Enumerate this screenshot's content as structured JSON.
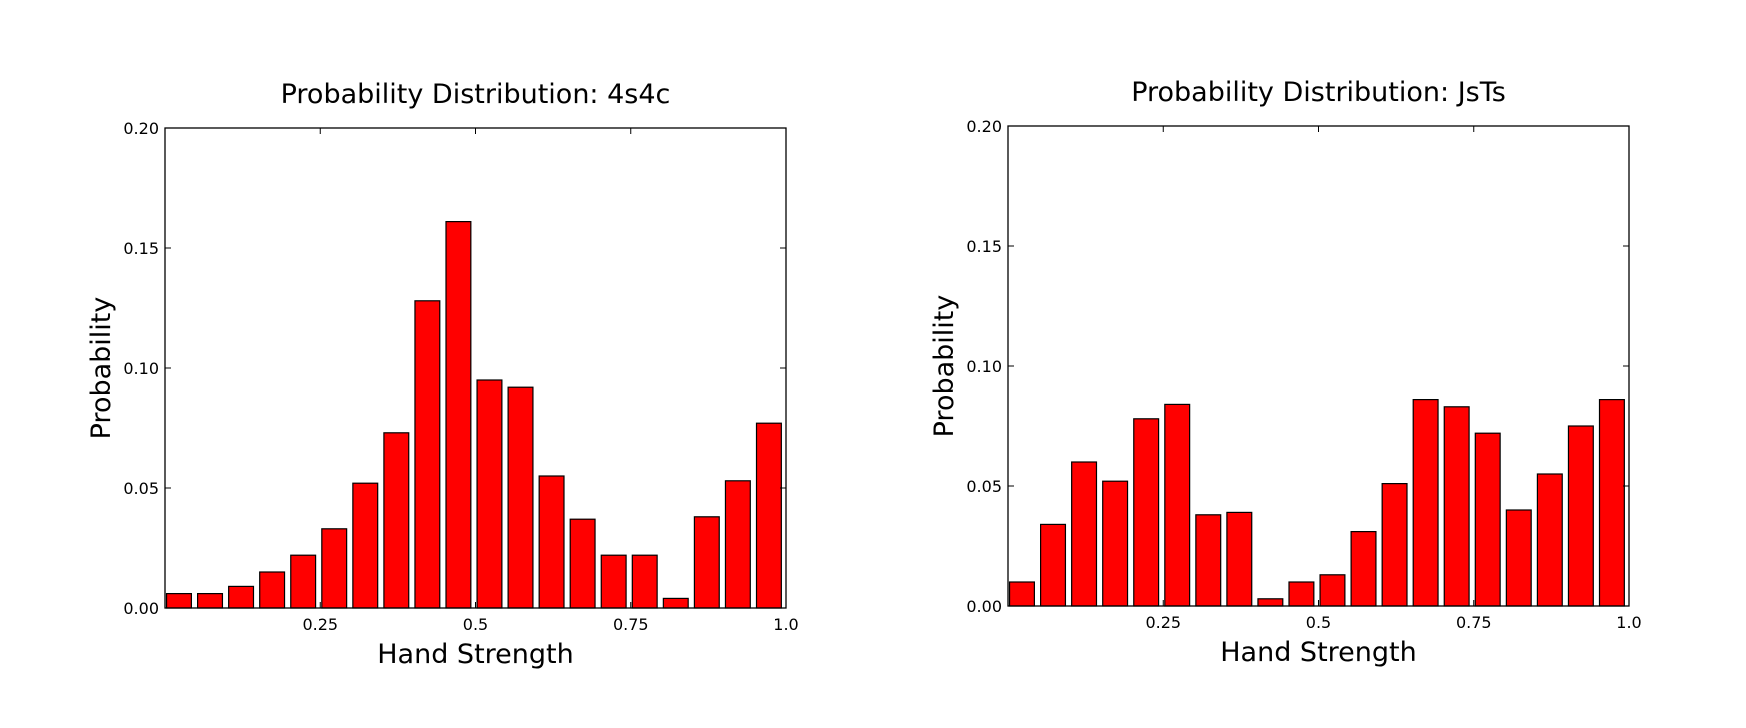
{
  "chart_data": [
    {
      "type": "bar",
      "title": "Probability Distribution: 4s4c",
      "xlabel": "Hand Strength",
      "ylabel": "Probability",
      "xlim": [
        0,
        1.0
      ],
      "ylim": [
        0,
        0.2
      ],
      "xticks": [
        0.25,
        0.5,
        0.75,
        1.0
      ],
      "xtick_labels": [
        "0.25",
        "0.5",
        "0.75",
        "1.0"
      ],
      "yticks": [
        0,
        0.05,
        0.1,
        0.15,
        0.2
      ],
      "ytick_labels": [
        "0.00",
        "0.05",
        "0.10",
        "0.15",
        "0.20"
      ],
      "bar_color": "#ff0000",
      "bar_width": 0.04,
      "x": [
        0.0225,
        0.0725,
        0.1225,
        0.1725,
        0.2225,
        0.2725,
        0.3225,
        0.3725,
        0.4225,
        0.4725,
        0.5225,
        0.5725,
        0.6225,
        0.6725,
        0.7225,
        0.7725,
        0.8225,
        0.8725,
        0.9225,
        0.9725
      ],
      "values": [
        0.006,
        0.006,
        0.009,
        0.015,
        0.022,
        0.033,
        0.052,
        0.073,
        0.128,
        0.161,
        0.095,
        0.092,
        0.055,
        0.037,
        0.022,
        0.022,
        0.004,
        0.038,
        0.053,
        0.077
      ]
    },
    {
      "type": "bar",
      "title": "Probability Distribution: JsTs",
      "xlabel": "Hand Strength",
      "ylabel": "Probability",
      "xlim": [
        0,
        1.0
      ],
      "ylim": [
        0,
        0.2
      ],
      "xticks": [
        0.25,
        0.5,
        0.75,
        1.0
      ],
      "xtick_labels": [
        "0.25",
        "0.5",
        "0.75",
        "1.0"
      ],
      "yticks": [
        0,
        0.05,
        0.1,
        0.15,
        0.2
      ],
      "ytick_labels": [
        "0.00",
        "0.05",
        "0.10",
        "0.15",
        "0.20"
      ],
      "bar_color": "#ff0000",
      "bar_width": 0.04,
      "x": [
        0.0225,
        0.0725,
        0.1225,
        0.1725,
        0.2225,
        0.2725,
        0.3225,
        0.3725,
        0.4225,
        0.4725,
        0.5225,
        0.5725,
        0.6225,
        0.6725,
        0.7225,
        0.7725,
        0.8225,
        0.8725,
        0.9225,
        0.9725
      ],
      "values": [
        0.01,
        0.034,
        0.06,
        0.052,
        0.078,
        0.084,
        0.038,
        0.039,
        0.003,
        0.01,
        0.013,
        0.031,
        0.051,
        0.086,
        0.083,
        0.072,
        0.04,
        0.055,
        0.075,
        0.086
      ]
    }
  ]
}
